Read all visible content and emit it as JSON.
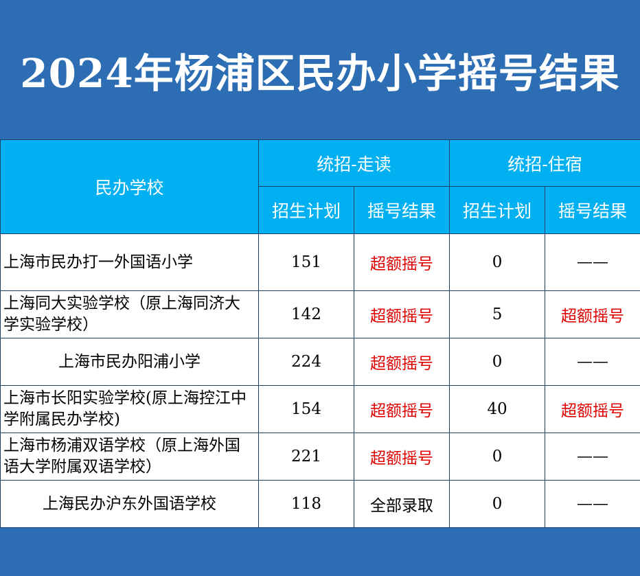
{
  "title": "2024年杨浦区民办小学摇号结果",
  "header": {
    "school_col": "民办学校",
    "group_walk": "统招-走读",
    "group_board": "统招-住宿",
    "plan": "招生计划",
    "result": "摇号结果"
  },
  "colors": {
    "band": "#2d6db4",
    "header_bg": "#00b0f0",
    "highlight_red": "#e00000"
  },
  "rows": [
    {
      "school": "上海市民办打一外国语小学",
      "walk_plan": "151",
      "walk_result": "超额摇号",
      "board_plan": "0",
      "board_result": "——"
    },
    {
      "school": "上海同大实验学校（原上海同济大学实验学校）",
      "walk_plan": "142",
      "walk_result": "超额摇号",
      "board_plan": "5",
      "board_result": "超额摇号"
    },
    {
      "school": "上海市民办阳浦小学",
      "walk_plan": "224",
      "walk_result": "超额摇号",
      "board_plan": "0",
      "board_result": "——"
    },
    {
      "school": "上海市长阳实验学校(原上海控江中学附属民办学校)",
      "walk_plan": "154",
      "walk_result": "超额摇号",
      "board_plan": "40",
      "board_result": "超额摇号"
    },
    {
      "school": "上海市杨浦双语学校（原上海外国语大学附属双语学校）",
      "walk_plan": "221",
      "walk_result": "超额摇号",
      "board_plan": "0",
      "board_result": "——"
    },
    {
      "school": "上海民办沪东外国语学校",
      "walk_plan": "118",
      "walk_result": "全部录取",
      "board_plan": "0",
      "board_result": "——"
    }
  ]
}
